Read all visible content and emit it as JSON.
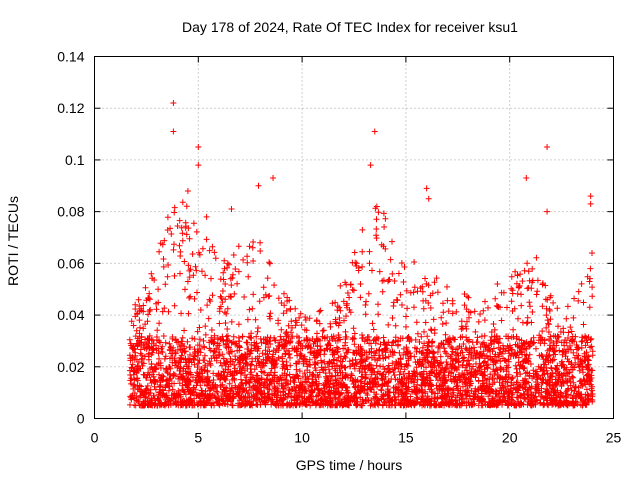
{
  "chart_data": {
    "type": "scatter",
    "title": "Day 178 of 2024, Rate Of TEC Index for receiver ksu1",
    "xlabel": "GPS time / hours",
    "ylabel": "ROTI / TECUs",
    "xlim": [
      0,
      25
    ],
    "ylim": [
      0,
      0.14
    ],
    "xticks": [
      0,
      5,
      10,
      15,
      20,
      25
    ],
    "xtick_labels": [
      "0",
      "5",
      "10",
      "15",
      "20",
      "25"
    ],
    "yticks": [
      0,
      0.02,
      0.04,
      0.06,
      0.08,
      0.1,
      0.12,
      0.14
    ],
    "ytick_labels": [
      "0",
      "0.02",
      "0.04",
      "0.06",
      "0.08",
      "0.1",
      "0.12",
      "0.14"
    ],
    "grid": true,
    "marker": "+",
    "color": "#ff0000",
    "x_extent": [
      1.7,
      24.0
    ],
    "typical_range": [
      0.005,
      0.04
    ],
    "peaks": [
      {
        "x": 3.8,
        "y": 0.122
      },
      {
        "x": 3.8,
        "y": 0.111
      },
      {
        "x": 4.5,
        "y": 0.088
      },
      {
        "x": 5.0,
        "y": 0.105
      },
      {
        "x": 5.0,
        "y": 0.098
      },
      {
        "x": 5.4,
        "y": 0.078
      },
      {
        "x": 6.6,
        "y": 0.081
      },
      {
        "x": 7.9,
        "y": 0.09
      },
      {
        "x": 8.6,
        "y": 0.093
      },
      {
        "x": 13.5,
        "y": 0.111
      },
      {
        "x": 13.3,
        "y": 0.098
      },
      {
        "x": 13.6,
        "y": 0.082
      },
      {
        "x": 16.0,
        "y": 0.089
      },
      {
        "x": 16.1,
        "y": 0.085
      },
      {
        "x": 20.8,
        "y": 0.093
      },
      {
        "x": 21.8,
        "y": 0.105
      },
      {
        "x": 21.8,
        "y": 0.08
      },
      {
        "x": 23.9,
        "y": 0.086
      },
      {
        "x": 23.9,
        "y": 0.083
      }
    ],
    "activity_profile": [
      {
        "x": 1.8,
        "y": 0.04
      },
      {
        "x": 2.5,
        "y": 0.05
      },
      {
        "x": 3.2,
        "y": 0.062
      },
      {
        "x": 3.8,
        "y": 0.08
      },
      {
        "x": 4.5,
        "y": 0.075
      },
      {
        "x": 5.2,
        "y": 0.07
      },
      {
        "x": 6.0,
        "y": 0.058
      },
      {
        "x": 7.0,
        "y": 0.062
      },
      {
        "x": 8.0,
        "y": 0.065
      },
      {
        "x": 9.0,
        "y": 0.045
      },
      {
        "x": 10.0,
        "y": 0.04
      },
      {
        "x": 11.0,
        "y": 0.038
      },
      {
        "x": 12.0,
        "y": 0.05
      },
      {
        "x": 13.0,
        "y": 0.07
      },
      {
        "x": 13.5,
        "y": 0.085
      },
      {
        "x": 14.5,
        "y": 0.06
      },
      {
        "x": 15.5,
        "y": 0.055
      },
      {
        "x": 16.5,
        "y": 0.05
      },
      {
        "x": 17.5,
        "y": 0.045
      },
      {
        "x": 18.5,
        "y": 0.042
      },
      {
        "x": 19.5,
        "y": 0.048
      },
      {
        "x": 20.8,
        "y": 0.06
      },
      {
        "x": 21.5,
        "y": 0.055
      },
      {
        "x": 22.5,
        "y": 0.035
      },
      {
        "x": 23.3,
        "y": 0.05
      },
      {
        "x": 24.0,
        "y": 0.06
      }
    ]
  }
}
